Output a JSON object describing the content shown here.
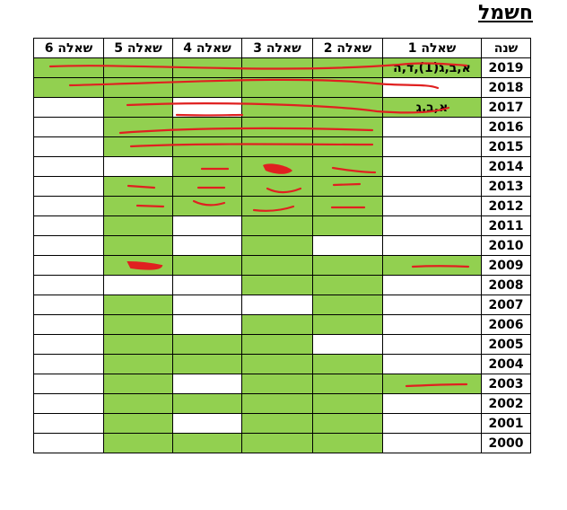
{
  "title": "חשמל",
  "columns": [
    "שנה",
    "שאלה 1",
    "שאלה 2",
    "שאלה 3",
    "שאלה 4",
    "שאלה 5",
    "שאלה 6"
  ],
  "rows": [
    {
      "year": "2019",
      "fills": [
        "g",
        "g",
        "g",
        "g",
        "g",
        "g"
      ],
      "notes": {
        "1": "א,ב,ג(1),ד,ה"
      }
    },
    {
      "year": "2018",
      "fills": [
        "w",
        "g",
        "g",
        "g",
        "g",
        "g"
      ],
      "notes": {}
    },
    {
      "year": "2017",
      "fills": [
        "g",
        "g",
        "g",
        "w",
        "g",
        "w"
      ],
      "notes": {
        "1": "א,ב,ג"
      }
    },
    {
      "year": "2016",
      "fills": [
        "w",
        "g",
        "g",
        "g",
        "g",
        "w"
      ],
      "notes": {}
    },
    {
      "year": "2015",
      "fills": [
        "w",
        "g",
        "g",
        "g",
        "g",
        "w"
      ],
      "notes": {}
    },
    {
      "year": "2014",
      "fills": [
        "w",
        "g",
        "g",
        "g",
        "w",
        "w"
      ],
      "notes": {}
    },
    {
      "year": "2013",
      "fills": [
        "w",
        "g",
        "g",
        "g",
        "g",
        "w"
      ],
      "notes": {}
    },
    {
      "year": "2012",
      "fills": [
        "w",
        "g",
        "g",
        "g",
        "g",
        "w"
      ],
      "notes": {}
    },
    {
      "year": "2011",
      "fills": [
        "w",
        "g",
        "g",
        "w",
        "g",
        "w"
      ],
      "notes": {}
    },
    {
      "year": "2010",
      "fills": [
        "w",
        "w",
        "g",
        "w",
        "g",
        "w"
      ],
      "notes": {}
    },
    {
      "year": "2009",
      "fills": [
        "g",
        "g",
        "g",
        "g",
        "g",
        "w"
      ],
      "notes": {}
    },
    {
      "year": "2008",
      "fills": [
        "w",
        "g",
        "g",
        "w",
        "w",
        "w"
      ],
      "notes": {}
    },
    {
      "year": "2007",
      "fills": [
        "w",
        "g",
        "w",
        "w",
        "g",
        "w"
      ],
      "notes": {}
    },
    {
      "year": "2006",
      "fills": [
        "w",
        "g",
        "g",
        "w",
        "g",
        "w"
      ],
      "notes": {}
    },
    {
      "year": "2005",
      "fills": [
        "w",
        "w",
        "g",
        "g",
        "g",
        "w"
      ],
      "notes": {}
    },
    {
      "year": "2004",
      "fills": [
        "w",
        "g",
        "g",
        "g",
        "g",
        "w"
      ],
      "notes": {}
    },
    {
      "year": "2003",
      "fills": [
        "g",
        "g",
        "g",
        "w",
        "g",
        "w"
      ],
      "notes": {}
    },
    {
      "year": "2002",
      "fills": [
        "w",
        "g",
        "g",
        "g",
        "g",
        "w"
      ],
      "notes": {}
    },
    {
      "year": "2001",
      "fills": [
        "w",
        "g",
        "g",
        "w",
        "g",
        "w"
      ],
      "notes": {}
    },
    {
      "year": "2000",
      "fills": [
        "w",
        "g",
        "g",
        "g",
        "g",
        "w"
      ],
      "notes": {}
    }
  ],
  "colors": {
    "filled": "#92d050",
    "empty": "#ffffff",
    "ink": "#e02020"
  }
}
